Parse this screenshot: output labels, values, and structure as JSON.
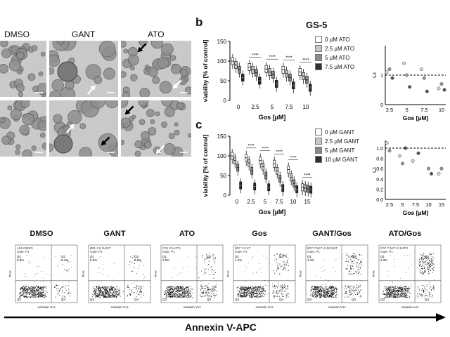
{
  "panel_a": {
    "col_labels": [
      "DMSO",
      "GANT",
      "ATO"
    ]
  },
  "panel_b": {
    "letter": "b",
    "title": "GS-5",
    "legend": [
      "0 µM ATO",
      "2.5 µM ATO",
      "5 µM ATO",
      "7.5 µM ATO"
    ],
    "colors": [
      "#ffffff",
      "#c8c8c8",
      "#8a8a8a",
      "#303030"
    ],
    "ci_ylabel": "CI",
    "ci_xlabel": "Gos [µM]",
    "ci_ticks_x": [
      "2.5",
      "5",
      "7.5",
      "10"
    ],
    "ci_ticks_y": [
      "0",
      "1"
    ]
  },
  "panel_c": {
    "letter": "c",
    "legend": [
      "0 µM GANT",
      "2.5 µM GANT",
      "5 µM GANT",
      "10 µM GANT"
    ],
    "colors": [
      "#ffffff",
      "#c8c8c8",
      "#8a8a8a",
      "#303030"
    ],
    "ci_ylabel": "CI",
    "ci_xlabel": "Gos [µM]",
    "ci_ticks_x": [
      "2.5",
      "5",
      "7.5",
      "10",
      "15"
    ],
    "ci_ticks_y": [
      "0.0",
      "0.2",
      "0.4",
      "0.6",
      "0.8",
      "1.0"
    ]
  },
  "chart_data": [
    {
      "type": "box",
      "panel": "b",
      "xlabel": "Gos [µM]",
      "ylabel": "viability [% of control]",
      "ylim": [
        0,
        150
      ],
      "yticks": [
        "0",
        "50",
        "100",
        "150"
      ],
      "categories": [
        "0",
        "2.5",
        "5",
        "7.5",
        "10"
      ],
      "series": [
        {
          "name": "0 µM ATO",
          "medians": [
            100,
            85,
            80,
            78,
            72
          ]
        },
        {
          "name": "2.5 µM ATO",
          "medians": [
            90,
            78,
            72,
            68,
            62
          ]
        },
        {
          "name": "5 µM ATO",
          "medians": [
            78,
            70,
            65,
            58,
            52
          ]
        },
        {
          "name": "7.5 µM ATO",
          "medians": [
            58,
            50,
            42,
            38,
            32
          ]
        }
      ],
      "significance": "****"
    },
    {
      "type": "scatter",
      "panel": "b",
      "xlabel": "Gos [µM]",
      "ylabel": "CI",
      "points": [
        {
          "x": 2.5,
          "y": 1.1
        },
        {
          "x": 2.5,
          "y": 1.2
        },
        {
          "x": 2.5,
          "y": 0.9
        },
        {
          "x": 5,
          "y": 1.4
        },
        {
          "x": 5,
          "y": 1.0
        },
        {
          "x": 5,
          "y": 0.6
        },
        {
          "x": 7.5,
          "y": 1.2
        },
        {
          "x": 7.5,
          "y": 0.9
        },
        {
          "x": 7.5,
          "y": 0.45
        },
        {
          "x": 10,
          "y": 0.55
        },
        {
          "x": 10,
          "y": 0.7
        },
        {
          "x": 10,
          "y": 0.5
        }
      ]
    },
    {
      "type": "box",
      "panel": "c",
      "xlabel": "Gos [µM]",
      "ylabel": "viability [% of control]",
      "ylim": [
        0,
        150
      ],
      "yticks": [
        "0",
        "50",
        "100",
        "150"
      ],
      "categories": [
        "0",
        "2.5",
        "5",
        "7.5",
        "10",
        "15"
      ],
      "series": [
        {
          "name": "0 µM GANT",
          "medians": [
            100,
            95,
            88,
            80,
            65,
            20
          ]
        },
        {
          "name": "2.5 µM GANT",
          "medians": [
            88,
            82,
            72,
            62,
            45,
            18
          ]
        },
        {
          "name": "5 µM GANT",
          "medians": [
            70,
            62,
            50,
            42,
            30,
            16
          ]
        },
        {
          "name": "10 µM GANT",
          "medians": [
            25,
            22,
            20,
            18,
            15,
            14
          ]
        }
      ],
      "significance": "****"
    },
    {
      "type": "scatter",
      "panel": "c",
      "xlabel": "Gos [µM]",
      "ylabel": "CI",
      "points": [
        {
          "x": 2.5,
          "y": 1.1
        },
        {
          "x": 2.5,
          "y": 0.95
        },
        {
          "x": 5,
          "y": 1.0
        },
        {
          "x": 5,
          "y": 0.85
        },
        {
          "x": 5,
          "y": 0.7
        },
        {
          "x": 7.5,
          "y": 0.9
        },
        {
          "x": 7.5,
          "y": 0.75
        },
        {
          "x": 10,
          "y": 0.6
        },
        {
          "x": 10,
          "y": 0.5
        },
        {
          "x": 15,
          "y": 0.5
        },
        {
          "x": 15,
          "y": 0.6
        }
      ]
    }
  ],
  "flow": {
    "axis_label": "Annexin V-APC",
    "panels": [
      {
        "title": "DMSO",
        "header": "A01 DMSO\nGate: P1",
        "q1": "Q1\n0.9%",
        "q2": "Q2\n6.4%"
      },
      {
        "title": "GANT",
        "header": "B01 2.5 GANT\nGate: P1",
        "q1": "Q1\n0.6%",
        "q2": "Q2\n6.8%"
      },
      {
        "title": "ATO",
        "header": "C01 2.5 ATO\nGate: P1",
        "q1": "Q1\n0.5%",
        "q2": "Q2"
      },
      {
        "title": "Gos",
        "header": "B07 7.5 KT\nGate: P1",
        "q1": "Q1\n1.4%",
        "q2": "Q2"
      },
      {
        "title": "GANT/Gos",
        "header": "B07 7.5KT+2.5GANT\nGate: P1",
        "q1": "Q1\n1.2%",
        "q2": "Q2"
      },
      {
        "title": "ATO/Gos",
        "header": "C07 7.5KT+2.5ATO\nGate: P1",
        "q1": "Q1\n2.3%",
        "q2": "Q2"
      }
    ],
    "x_axis_small": "Annexin V-H",
    "y_axis_small": "PI-H",
    "q3": "Q3",
    "q4": "Q4"
  }
}
